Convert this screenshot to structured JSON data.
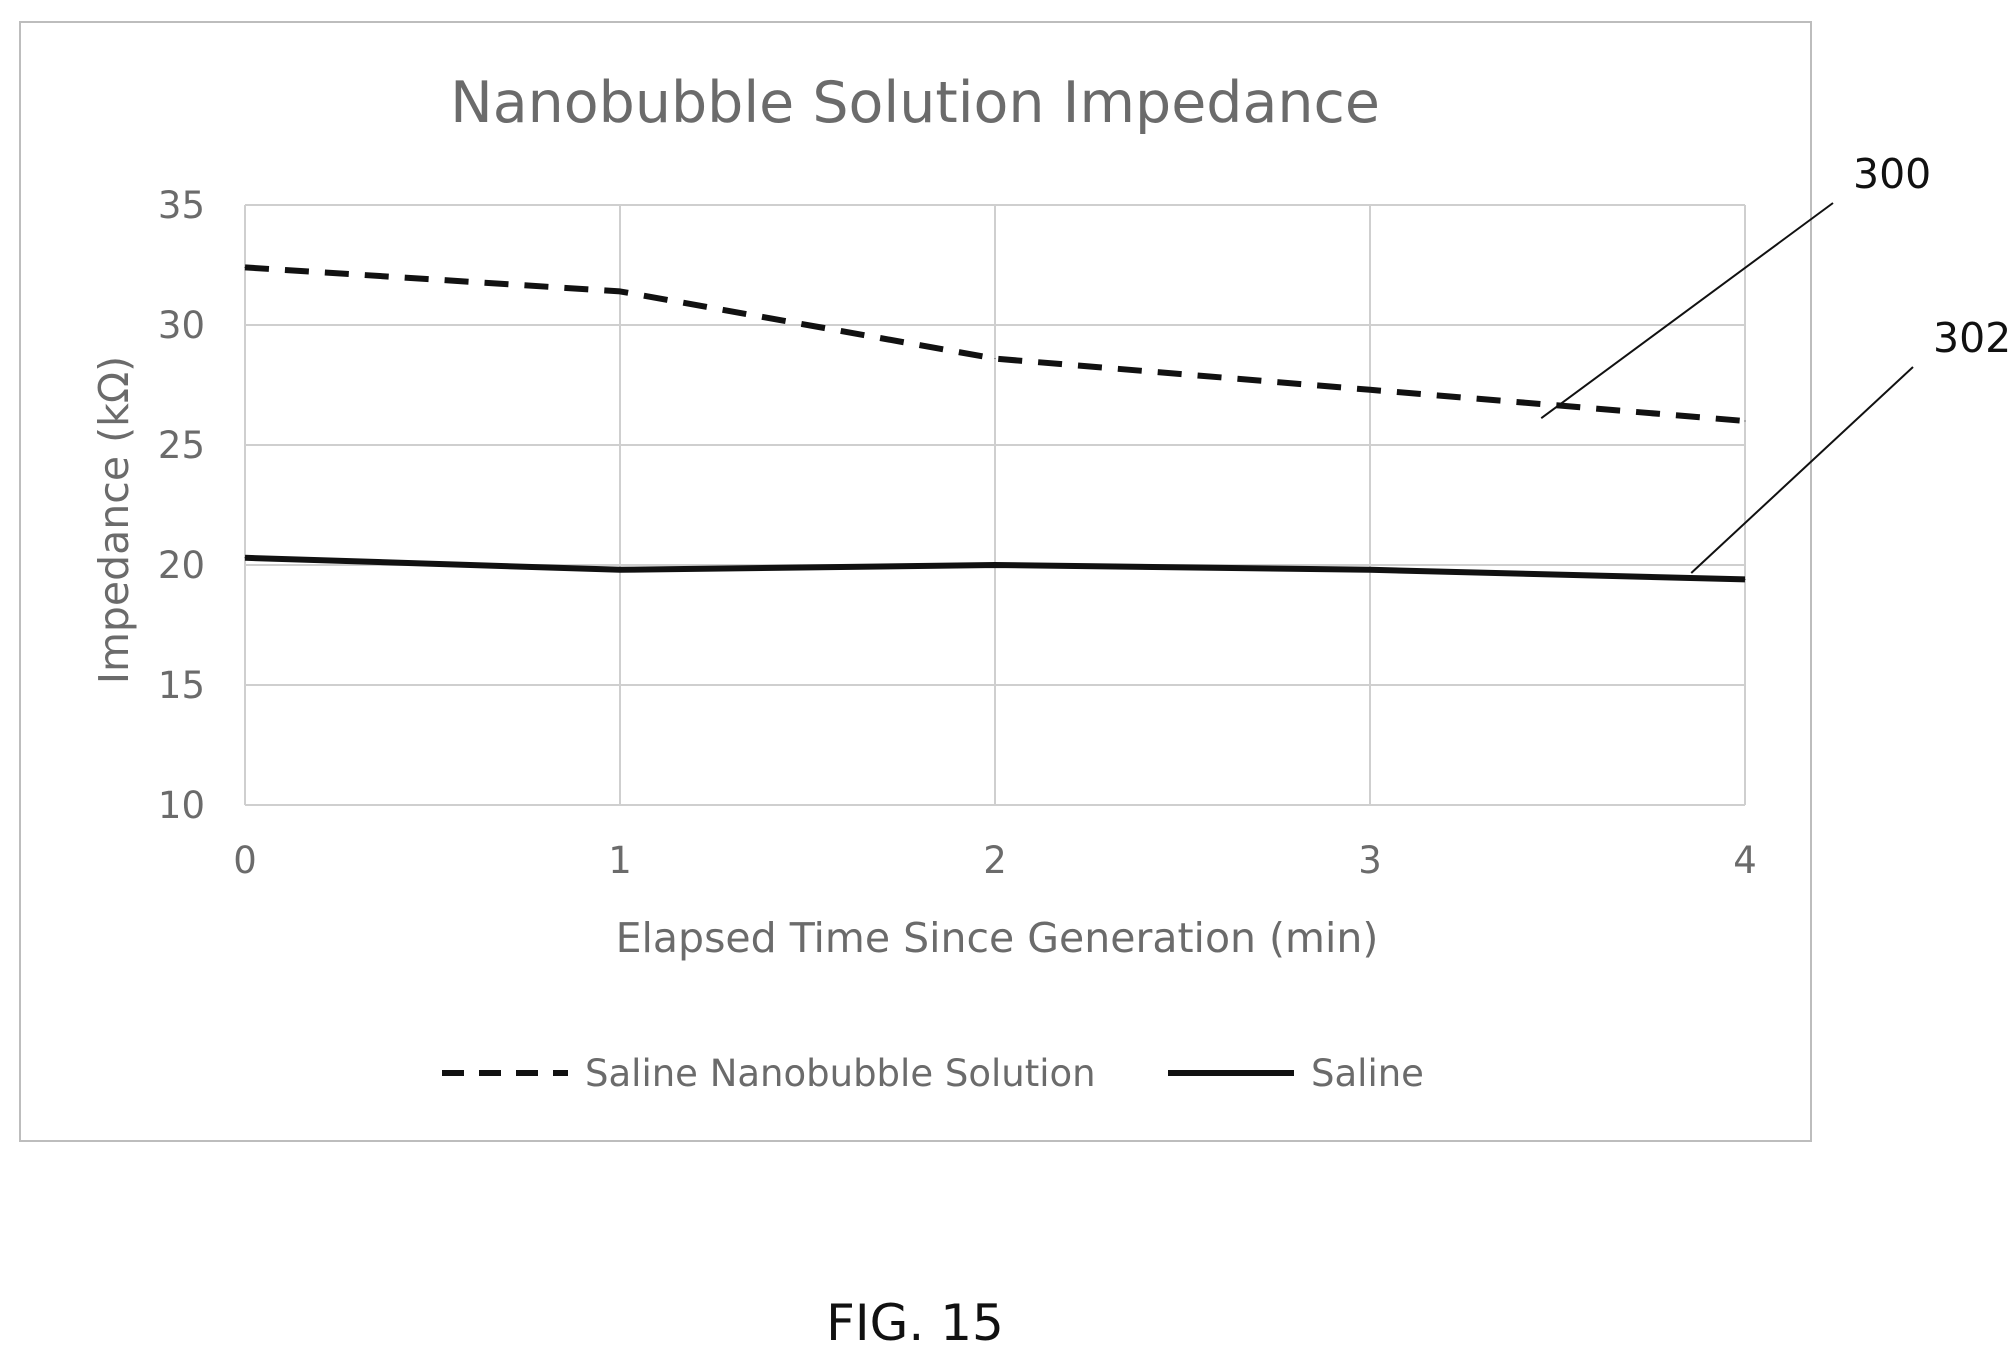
{
  "figure_label": "FIG. 15",
  "chart_data": {
    "type": "line",
    "title": "Nanobubble Solution Impedance",
    "xlabel": "Elapsed Time Since Generation (min)",
    "ylabel": "Impedance (kΩ)",
    "x": [
      0,
      1,
      2,
      3,
      4
    ],
    "xlim": [
      0,
      4
    ],
    "ylim": [
      10,
      35
    ],
    "yticks": [
      10,
      15,
      20,
      25,
      30,
      35
    ],
    "xticks": [
      0,
      1,
      2,
      3,
      4
    ],
    "grid": true,
    "legend_position": "bottom",
    "series": [
      {
        "name": "Saline Nanobubble Solution",
        "values": [
          32.4,
          31.4,
          28.6,
          27.3,
          26.0
        ],
        "style": "dashed",
        "color": "#111111",
        "callout": "300"
      },
      {
        "name": "Saline",
        "values": [
          20.3,
          19.8,
          20.0,
          19.8,
          19.4
        ],
        "style": "solid",
        "color": "#111111",
        "callout": "302"
      }
    ]
  }
}
